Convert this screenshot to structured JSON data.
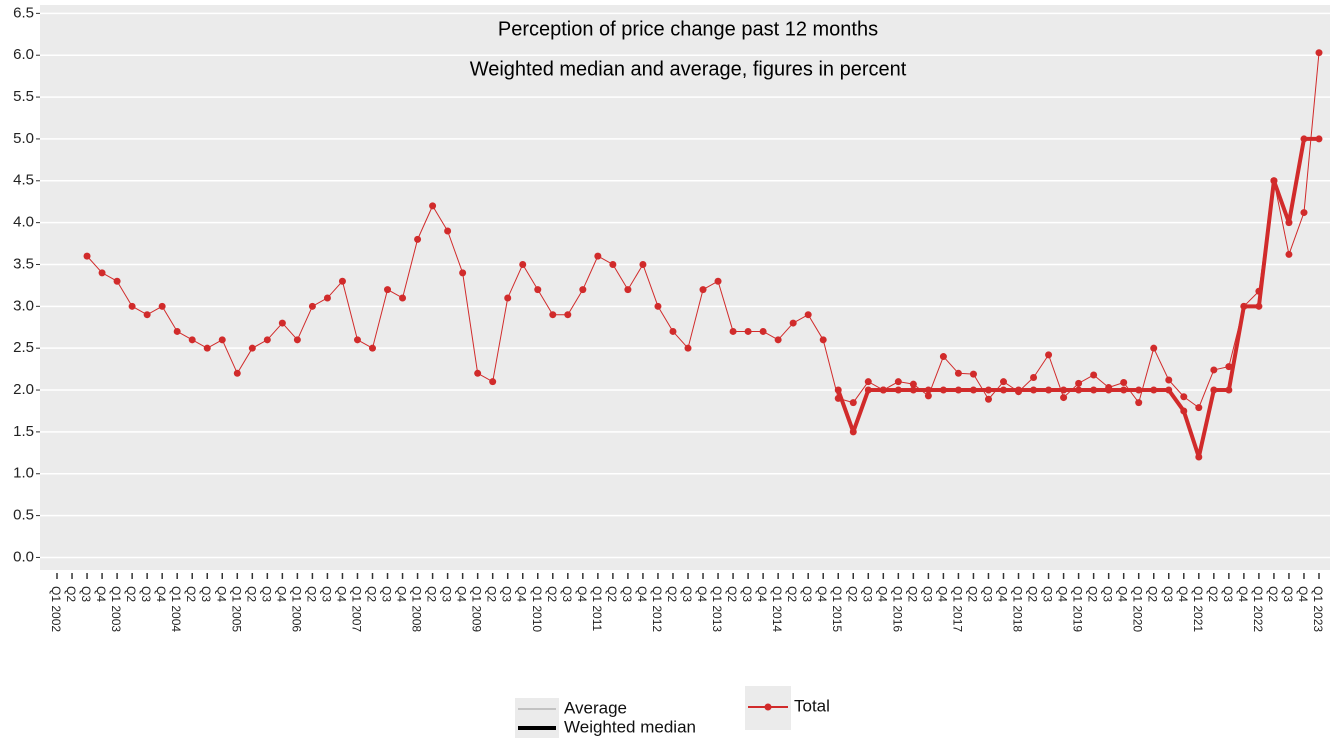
{
  "chart_data": {
    "type": "line",
    "title": "Perception of price change past 12 months",
    "subtitle": "Weighted median and average, figures in percent",
    "categories": [
      "Q1 2002",
      "Q2",
      "Q3",
      "Q4",
      "Q1 2003",
      "Q2",
      "Q3",
      "Q4",
      "Q1 2004",
      "Q2",
      "Q3",
      "Q4",
      "Q1 2005",
      "Q2",
      "Q3",
      "Q4",
      "Q1 2006",
      "Q2",
      "Q3",
      "Q4",
      "Q1 2007",
      "Q2",
      "Q3",
      "Q4",
      "Q1 2008",
      "Q2",
      "Q3",
      "Q4",
      "Q1 2009",
      "Q2",
      "Q3",
      "Q4",
      "Q1 2010",
      "Q2",
      "Q3",
      "Q4",
      "Q1 2011",
      "Q2",
      "Q3",
      "Q4",
      "Q1 2012",
      "Q2",
      "Q3",
      "Q4",
      "Q1 2013",
      "Q2",
      "Q3",
      "Q4",
      "Q1 2014",
      "Q2",
      "Q3",
      "Q4",
      "Q1 2015",
      "Q2",
      "Q3",
      "Q4",
      "Q1 2016",
      "Q2",
      "Q3",
      "Q4",
      "Q1 2017",
      "Q2",
      "Q3",
      "Q4",
      "Q1 2018",
      "Q2",
      "Q3",
      "Q4",
      "Q1 2019",
      "Q2",
      "Q3",
      "Q4",
      "Q1 2020",
      "Q2",
      "Q3",
      "Q4",
      "Q1 2021",
      "Q2",
      "Q3",
      "Q4",
      "Q1 2022",
      "Q2",
      "Q3",
      "Q4",
      "Q1 2023"
    ],
    "series": [
      {
        "name": "Average",
        "color": "#d12b2b",
        "legend_color": "#999999",
        "width": 1,
        "values": [
          null,
          null,
          3.6,
          3.4,
          3.3,
          3.0,
          2.9,
          3.0,
          2.7,
          2.6,
          2.5,
          2.6,
          2.2,
          2.5,
          2.6,
          2.8,
          2.6,
          3.0,
          3.1,
          3.3,
          2.6,
          2.5,
          3.2,
          3.1,
          3.8,
          4.2,
          3.9,
          3.4,
          2.2,
          2.1,
          3.1,
          3.5,
          3.2,
          2.9,
          2.9,
          3.2,
          3.6,
          3.5,
          3.2,
          3.5,
          3.0,
          2.7,
          2.5,
          3.2,
          3.3,
          2.7,
          2.7,
          2.7,
          2.6,
          2.8,
          2.9,
          2.6,
          1.9,
          1.85,
          2.1,
          2.0,
          2.1,
          2.07,
          1.93,
          2.4,
          2.2,
          2.19,
          1.89,
          2.1,
          1.98,
          2.15,
          2.42,
          1.91,
          2.08,
          2.18,
          2.03,
          2.09,
          1.85,
          2.5,
          2.12,
          1.92,
          1.79,
          2.24,
          2.28,
          3.0,
          3.18,
          4.5,
          3.62,
          4.12,
          6.03
        ]
      },
      {
        "name": "Weighted median",
        "color": "#d12b2b",
        "legend_color": "#000000",
        "width": 4,
        "values": [
          null,
          null,
          null,
          null,
          null,
          null,
          null,
          null,
          null,
          null,
          null,
          null,
          null,
          null,
          null,
          null,
          null,
          null,
          null,
          null,
          null,
          null,
          null,
          null,
          null,
          null,
          null,
          null,
          null,
          null,
          null,
          null,
          null,
          null,
          null,
          null,
          null,
          null,
          null,
          null,
          null,
          null,
          null,
          null,
          null,
          null,
          null,
          null,
          null,
          null,
          null,
          null,
          2.0,
          1.5,
          2.0,
          2.0,
          2.0,
          2.0,
          2.0,
          2.0,
          2.0,
          2.0,
          2.0,
          2.0,
          2.0,
          2.0,
          2.0,
          2.0,
          2.0,
          2.0,
          2.0,
          2.0,
          2.0,
          2.0,
          2.0,
          1.75,
          1.2,
          2.0,
          2.0,
          3.0,
          3.0,
          4.5,
          4.0,
          5.0,
          5.0
        ]
      }
    ],
    "group_label": "Total",
    "group_color": "#d12b2b",
    "ylim": [
      -0.15,
      6.6
    ],
    "yticks": [
      {
        "value": 0,
        "label": "0.0"
      },
      0.5,
      {
        "value": 1,
        "label": "1.0"
      },
      1.5,
      {
        "value": 2,
        "label": "2.0"
      },
      2.5,
      {
        "value": 3,
        "label": "3.0"
      },
      3.5,
      {
        "value": 4,
        "label": "4.0"
      },
      4.5,
      {
        "value": 5,
        "label": "5.0"
      },
      5.5,
      {
        "value": 6,
        "label": "6.0"
      },
      6.5
    ],
    "grid": true
  }
}
